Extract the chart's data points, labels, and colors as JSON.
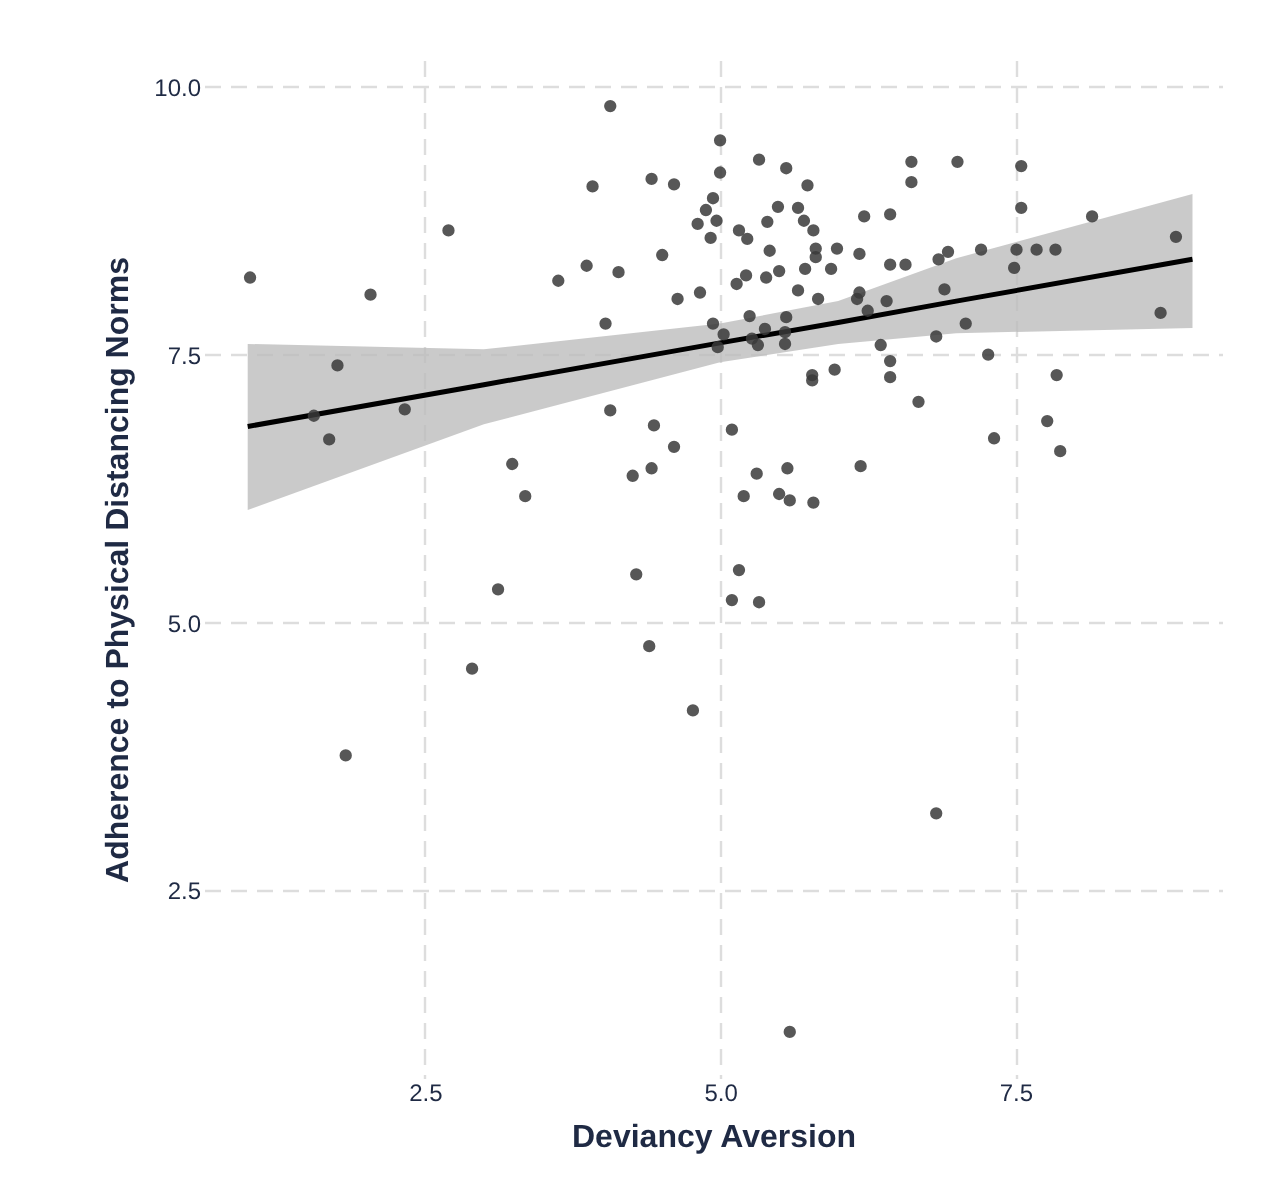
{
  "chart_data": {
    "type": "scatter",
    "xlabel": "Deviancy Aversion",
    "ylabel": "Adherence to Physical Distancing Norms",
    "xlim": [
      0.63,
      9.25
    ],
    "ylim": [
      0.75,
      10.25
    ],
    "xticks": [
      {
        "value": 2.5,
        "label": "2.5"
      },
      {
        "value": 5,
        "label": "5.0"
      },
      {
        "value": 7.5,
        "label": "7.5"
      }
    ],
    "yticks": [
      {
        "value": 2.5,
        "label": "2.5"
      },
      {
        "value": 5,
        "label": "5.0"
      },
      {
        "value": 7.5,
        "label": "7.5"
      },
      {
        "value": 10,
        "label": "10.0"
      }
    ],
    "grid": true,
    "marker": "circle",
    "series": [
      {
        "type": "line",
        "marker": "none",
        "color": "#000000",
        "x": [
          1.0,
          3.0,
          5.0,
          6.0,
          7.0,
          9.0
        ],
        "values": [
          6.83,
          7.22,
          7.61,
          7.8,
          8.0,
          8.39
        ],
        "lower": [
          6.05,
          6.85,
          7.43,
          7.6,
          7.7,
          7.75
        ],
        "upper": [
          7.6,
          7.55,
          7.79,
          8.0,
          8.4,
          9.0
        ]
      },
      {
        "color": "#3a3a3a",
        "x": [
          1.02,
          1.76,
          1.56,
          1.69,
          2.04,
          2.33,
          2.7,
          3.24,
          3.63,
          3.87,
          4.07,
          3.92,
          4.14,
          4.03,
          4.07,
          4.26,
          4.42,
          4.44,
          4.61,
          4.42,
          4.61,
          4.51,
          4.64,
          4.83,
          4.81,
          4.88,
          4.94,
          4.97,
          4.92,
          5.0,
          5.0,
          4.94,
          1.83,
          2.9,
          3.12,
          3.35,
          4.29,
          4.4,
          4.77,
          5.16,
          5.1,
          5.33,
          6.83,
          5.59,
          5.2,
          5.5,
          5.59,
          5.79,
          5.31,
          5.57,
          6.19,
          5.33,
          5.56,
          5.74,
          5.49,
          5.4,
          5.66,
          5.71,
          5.79,
          5.16,
          5.23,
          5.81,
          5.81,
          5.42,
          5.99,
          6.22,
          6.44,
          6.62,
          6.62,
          7.01,
          7.55,
          7.55,
          8.15,
          8.86,
          6.18,
          6.44,
          6.57,
          6.85,
          6.93,
          7.21,
          7.51,
          7.68,
          7.84,
          7.49,
          5.22,
          5.14,
          5.39,
          5.5,
          5.72,
          5.94,
          5.66,
          5.83,
          6.16,
          6.18,
          6.41,
          6.25,
          6.9,
          5.25,
          5.03,
          4.98,
          5.27,
          5.32,
          5.38,
          5.56,
          5.55,
          5.55,
          6.36,
          6.83,
          7.08,
          8.73,
          7.27,
          6.44,
          6.44,
          5.78,
          5.78,
          5.97,
          6.68,
          7.85,
          7.77,
          7.88,
          7.32,
          5.1
        ],
        "values": [
          8.22,
          7.4,
          6.93,
          6.71,
          8.06,
          6.99,
          8.66,
          6.48,
          8.19,
          8.33,
          9.82,
          9.07,
          8.27,
          7.79,
          6.98,
          6.37,
          6.44,
          6.84,
          6.64,
          9.14,
          9.09,
          8.43,
          8.02,
          8.08,
          8.72,
          8.85,
          8.96,
          8.75,
          8.59,
          9.5,
          9.2,
          7.79,
          3.76,
          4.57,
          5.31,
          6.18,
          5.45,
          4.78,
          4.18,
          5.49,
          5.21,
          5.19,
          3.22,
          1.18,
          6.18,
          6.2,
          6.14,
          6.12,
          6.39,
          6.44,
          6.46,
          9.32,
          9.24,
          9.08,
          8.88,
          8.74,
          8.87,
          8.75,
          8.66,
          8.66,
          8.58,
          8.49,
          8.41,
          8.47,
          8.49,
          8.79,
          8.81,
          9.3,
          9.11,
          9.3,
          9.26,
          8.87,
          8.79,
          8.6,
          8.44,
          8.34,
          8.34,
          8.39,
          8.46,
          8.48,
          8.48,
          8.48,
          8.48,
          8.31,
          8.24,
          8.16,
          8.22,
          8.28,
          8.3,
          8.3,
          8.1,
          8.02,
          8.02,
          8.08,
          8.0,
          7.91,
          8.11,
          7.86,
          7.69,
          7.57,
          7.65,
          7.59,
          7.74,
          7.85,
          7.71,
          7.6,
          7.59,
          7.67,
          7.79,
          7.89,
          7.5,
          7.44,
          7.29,
          7.31,
          7.26,
          7.36,
          7.06,
          7.31,
          6.88,
          6.6,
          6.72,
          6.8
        ]
      }
    ]
  }
}
